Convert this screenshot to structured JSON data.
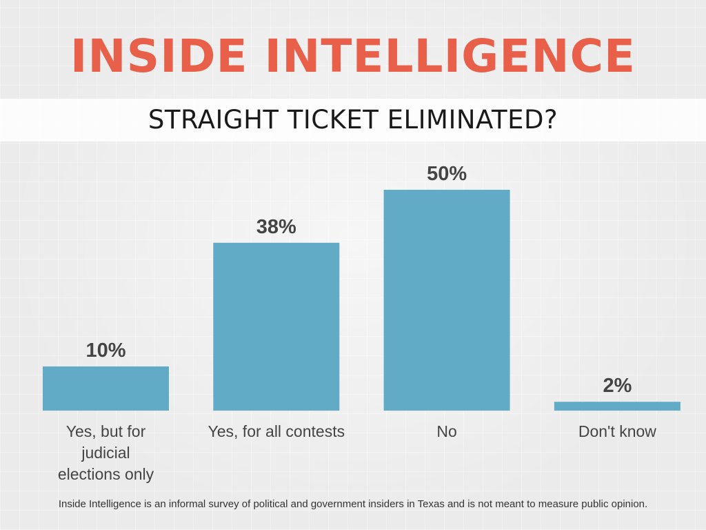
{
  "header": {
    "title": "INSIDE INTELLIGENCE",
    "subtitle": "STRAIGHT TICKET ELIMINATED?"
  },
  "colors": {
    "title": "#e8604a",
    "bar": "#62abc6",
    "value_text": "#444444",
    "label_text": "#444444"
  },
  "chart_data": {
    "type": "bar",
    "title": "STRAIGHT TICKET ELIMINATED?",
    "categories": [
      [
        "Yes, but for",
        "judicial",
        "elections only"
      ],
      [
        "Yes, for all contests"
      ],
      [
        "No"
      ],
      [
        "Don't know"
      ]
    ],
    "values": [
      10,
      38,
      50,
      2
    ],
    "value_labels": [
      "10%",
      "38%",
      "50%",
      "2%"
    ],
    "unit": "%",
    "ylim": [
      0,
      50
    ],
    "xlabel": "",
    "ylabel": "",
    "grid": false,
    "legend": "none",
    "axes_visible": false
  },
  "footnote": "Inside Intelligence is an informal survey of political and government insiders in Texas and is not meant to measure public opinion."
}
